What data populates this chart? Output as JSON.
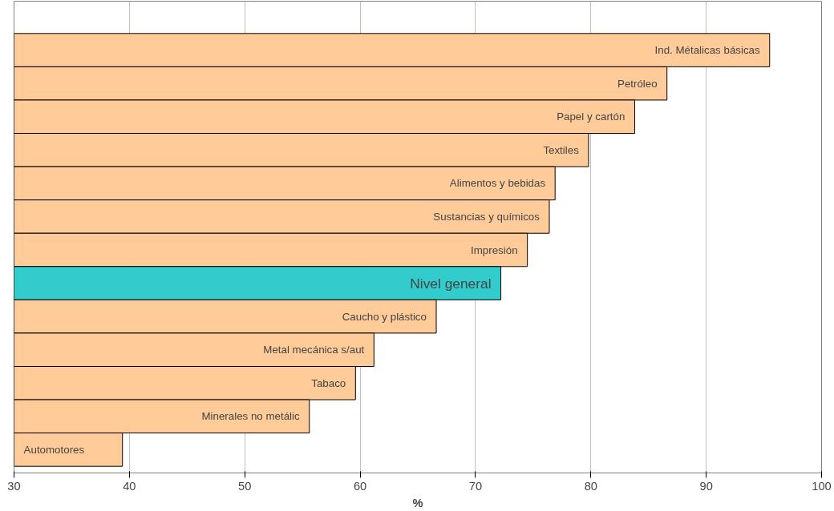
{
  "chart_data": {
    "type": "bar",
    "orientation": "horizontal",
    "xlabel": "%",
    "categories": [
      "Ind. Métalicas básicas",
      "Petróleo",
      "Papel y cartón",
      "Textiles",
      "Alimentos y bebidas",
      "Sustancias y químicos",
      "Impresión",
      "Nivel general",
      "Caucho y plástico",
      "Metal mecánica s/aut",
      "Tabaco",
      "Minerales no metálic",
      "Automotores"
    ],
    "values": [
      95.5,
      86.6,
      83.8,
      79.8,
      76.9,
      76.4,
      74.5,
      72.2,
      66.6,
      61.2,
      59.6,
      55.6,
      39.4
    ],
    "colors": [
      "#ffcc99",
      "#ffcc99",
      "#ffcc99",
      "#ffcc99",
      "#ffcc99",
      "#ffcc99",
      "#ffcc99",
      "#33cccc",
      "#ffcc99",
      "#ffcc99",
      "#ffcc99",
      "#ffcc99",
      "#ffcc99"
    ],
    "xlim": [
      30,
      100
    ],
    "xticks": [
      30,
      40,
      50,
      60,
      70,
      80,
      90,
      100
    ],
    "grid": "x"
  }
}
